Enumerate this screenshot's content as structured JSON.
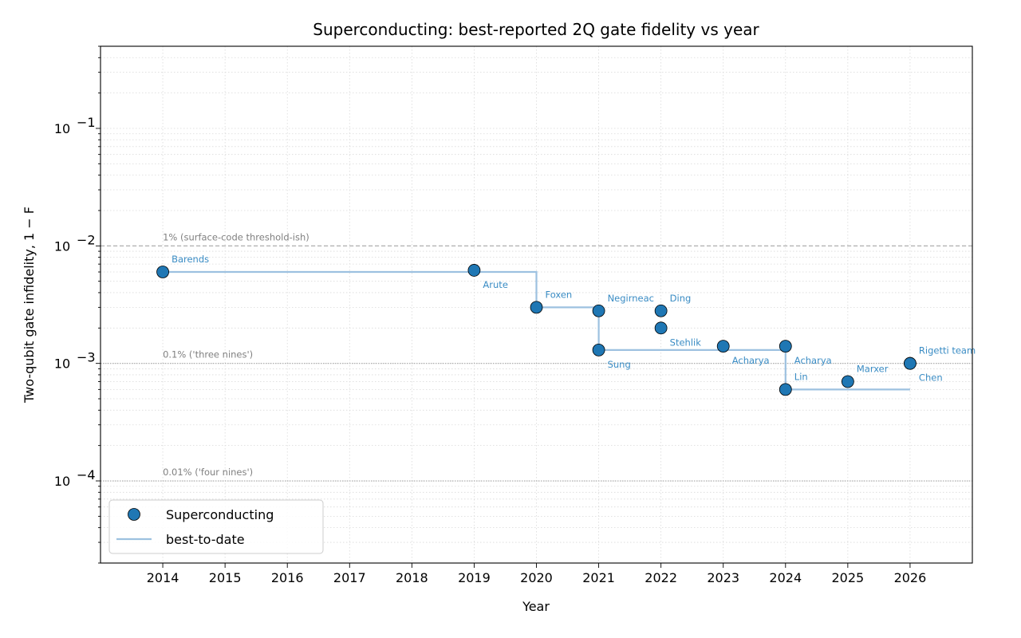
{
  "chart_data": {
    "type": "scatter",
    "title": "Superconducting: best-reported 2Q gate fidelity vs year",
    "xlabel": "Year",
    "ylabel": "Two-qubit gate infidelity, 1 − F",
    "yscale": "log",
    "xlim": [
      2013,
      2027
    ],
    "ylim": [
      2e-05,
      0.5
    ],
    "xticks": [
      2014,
      2015,
      2016,
      2017,
      2018,
      2019,
      2020,
      2021,
      2022,
      2023,
      2024,
      2025,
      2026
    ],
    "yticks": [
      {
        "value": 0.0001,
        "base": "10",
        "exp": "−4"
      },
      {
        "value": 0.001,
        "base": "10",
        "exp": "−3"
      },
      {
        "value": 0.01,
        "base": "10",
        "exp": "−2"
      },
      {
        "value": 0.1,
        "base": "10",
        "exp": "−1"
      }
    ],
    "grid": true,
    "colors": {
      "point_fill": "#1f77b4",
      "point_edge": "#000000",
      "label": "#3a8cc4",
      "step_line": "#9dc1e0",
      "reference": "#a6a6a6",
      "grid": "#d9d9d9"
    },
    "series": [
      {
        "name": "Superconducting",
        "points": [
          {
            "x": 2014,
            "y": 0.006,
            "label": "Barends",
            "label_pos": "above-right"
          },
          {
            "x": 2019,
            "y": 0.0062,
            "label": "Arute",
            "label_pos": "below-right"
          },
          {
            "x": 2020,
            "y": 0.003,
            "label": "Foxen",
            "label_pos": "above-right"
          },
          {
            "x": 2021,
            "y": 0.0028,
            "label": "Negirneac",
            "label_pos": "above-right"
          },
          {
            "x": 2021,
            "y": 0.0013,
            "label": "Sung",
            "label_pos": "below-right"
          },
          {
            "x": 2022,
            "y": 0.0028,
            "label": "Ding",
            "label_pos": "above-right"
          },
          {
            "x": 2022,
            "y": 0.002,
            "label": "Stehlik",
            "label_pos": "below-right"
          },
          {
            "x": 2023,
            "y": 0.0014,
            "label": "Acharya",
            "label_pos": "below-right"
          },
          {
            "x": 2024,
            "y": 0.0014,
            "label": "Acharya",
            "label_pos": "below-right"
          },
          {
            "x": 2024,
            "y": 0.0006,
            "label": "Lin",
            "label_pos": "above-right"
          },
          {
            "x": 2025,
            "y": 0.0007,
            "label": "Marxer",
            "label_pos": "above-right"
          },
          {
            "x": 2026,
            "y": 0.001,
            "label": "Rigetti team",
            "label_pos": "above-right"
          },
          {
            "x": 2026,
            "y": 0.001,
            "label": "Chen",
            "label_pos": "below-right"
          }
        ]
      },
      {
        "name": "best-to-date",
        "type": "step",
        "x": [
          2014,
          2020,
          2020,
          2021,
          2021,
          2024,
          2024,
          2026
        ],
        "y": [
          0.006,
          0.006,
          0.003,
          0.003,
          0.0013,
          0.0013,
          0.0006,
          0.0006
        ]
      }
    ],
    "reference_lines": [
      {
        "y": 0.01,
        "label": "1% (surface-code threshold-ish)",
        "style": "dashed"
      },
      {
        "y": 0.001,
        "label": "0.1% ('three nines')",
        "style": "dotted"
      },
      {
        "y": 0.0001,
        "label": "0.01% ('four nines')",
        "style": "dotted"
      }
    ],
    "legend": {
      "position": "lower-left",
      "entries": [
        "Superconducting",
        "best-to-date"
      ]
    }
  }
}
